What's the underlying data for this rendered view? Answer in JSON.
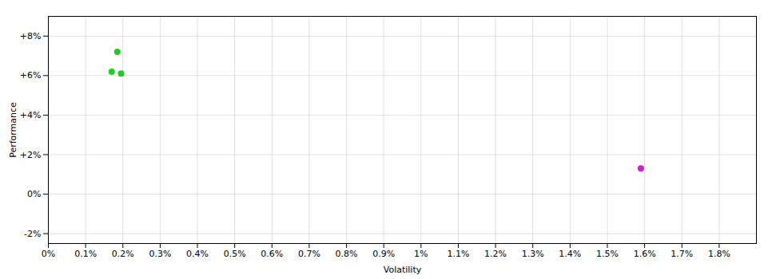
{
  "chart_data": {
    "type": "scatter",
    "xlabel": "Volatility",
    "ylabel": "Performance",
    "series": [
      {
        "color": "#22cc22",
        "x": [
          0.00185,
          0.0017,
          0.00195
        ],
        "values": [
          0.072,
          0.062,
          0.061
        ]
      },
      {
        "color": "#cc22cc",
        "x": [
          0.0159
        ],
        "values": [
          0.013
        ]
      }
    ],
    "xlim": [
      0.0,
      0.019
    ],
    "ylim": [
      -0.025,
      0.09
    ],
    "xticks": [
      {
        "value": 0.0,
        "label": "0%"
      },
      {
        "value": 0.001,
        "label": "0.1%"
      },
      {
        "value": 0.002,
        "label": "0.2%"
      },
      {
        "value": 0.003,
        "label": "0.3%"
      },
      {
        "value": 0.004,
        "label": "0.4%"
      },
      {
        "value": 0.005,
        "label": "0.5%"
      },
      {
        "value": 0.006,
        "label": "0.6%"
      },
      {
        "value": 0.007,
        "label": "0.7%"
      },
      {
        "value": 0.008,
        "label": "0.8%"
      },
      {
        "value": 0.009,
        "label": "0.9%"
      },
      {
        "value": 0.01,
        "label": "1%"
      },
      {
        "value": 0.011,
        "label": "1.1%"
      },
      {
        "value": 0.012,
        "label": "1.2%"
      },
      {
        "value": 0.013,
        "label": "1.3%"
      },
      {
        "value": 0.014,
        "label": "1.4%"
      },
      {
        "value": 0.015,
        "label": "1.5%"
      },
      {
        "value": 0.016,
        "label": "1.6%"
      },
      {
        "value": 0.017,
        "label": "1.7%"
      },
      {
        "value": 0.018,
        "label": "1.8%"
      }
    ],
    "yticks": [
      {
        "value": -0.02,
        "label": "-2%"
      },
      {
        "value": 0.0,
        "label": "0%"
      },
      {
        "value": 0.02,
        "label": "+2%"
      },
      {
        "value": 0.04,
        "label": "+4%"
      },
      {
        "value": 0.06,
        "label": "+6%"
      },
      {
        "value": 0.08,
        "label": "+8%"
      }
    ],
    "grid": true
  }
}
